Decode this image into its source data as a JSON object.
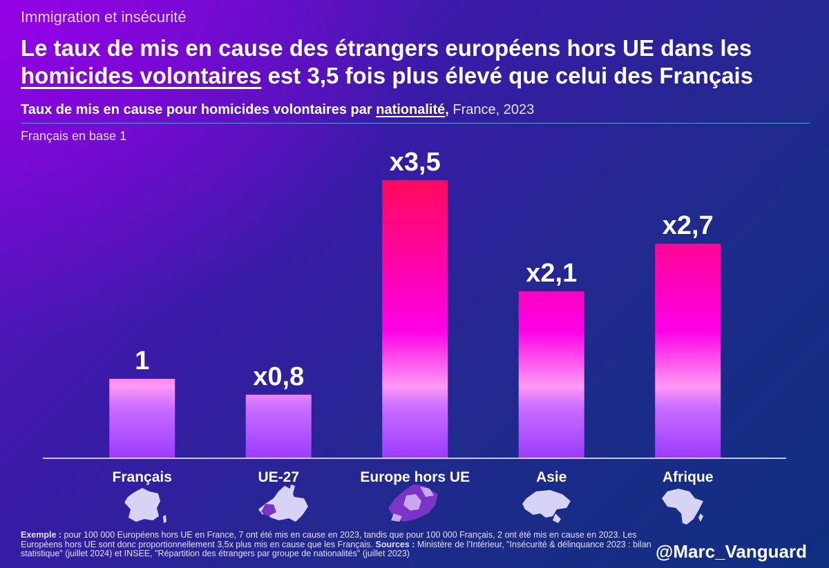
{
  "kicker": "Immigration et insécurité",
  "headline": {
    "part1": "Le taux de mis en cause des étrangers européens hors UE dans les",
    "underlined": "homicides volontaires",
    "part2": " est 3,5 fois plus élevé que celui des Français"
  },
  "subtitle": {
    "bold_prefix": "Taux de mis en cause pour homicides volontaires par ",
    "underlined": "nationalité",
    "comma": ",",
    "rest": " France, 2023"
  },
  "baseline_note": "Français en base 1",
  "chart_data": {
    "type": "bar",
    "title": "Taux de mis en cause pour homicides volontaires par nationalité, France, 2023",
    "ylabel": "Français en base 1",
    "categories": [
      "Français",
      "UE-27",
      "Europe hors UE",
      "Asie",
      "Afrique"
    ],
    "values": [
      1,
      0.8,
      3.5,
      2.1,
      2.7
    ],
    "data_labels": [
      "1",
      "x0,8",
      "x3,5",
      "x2,1",
      "x2,7"
    ],
    "ylim": [
      0,
      3.5
    ],
    "grid": false,
    "colors": {
      "low": "#9a3cff",
      "mid": "#ff00e0",
      "high": "#ff0a5c",
      "axis": "#ffffff"
    },
    "icons": [
      "france-map-icon",
      "eu27-map-icon",
      "europe-non-eu-map-icon",
      "asia-map-icon",
      "africa-map-icon"
    ]
  },
  "footnote": {
    "example_label": "Exemple :",
    "example_text": " pour 100 000 Européens hors UE en France, 7 ont été mis en cause en 2023, tandis que pour 100 000 Français, 2 ont été mis en cause en 2023. Les Européens hors UE sont donc proportionnellement 3,5x plus mis en cause que les Français. ",
    "sources_label": "Sources :",
    "sources_text": " Ministère de l’Intérieur, \"Insécurité & délinquance 2023 : bilan statistique\" (juillet 2024) et INSEE, \"Répartition des étrangers par groupe de nationalités\" (juillet 2023)"
  },
  "handle": "@Marc_Vanguard"
}
